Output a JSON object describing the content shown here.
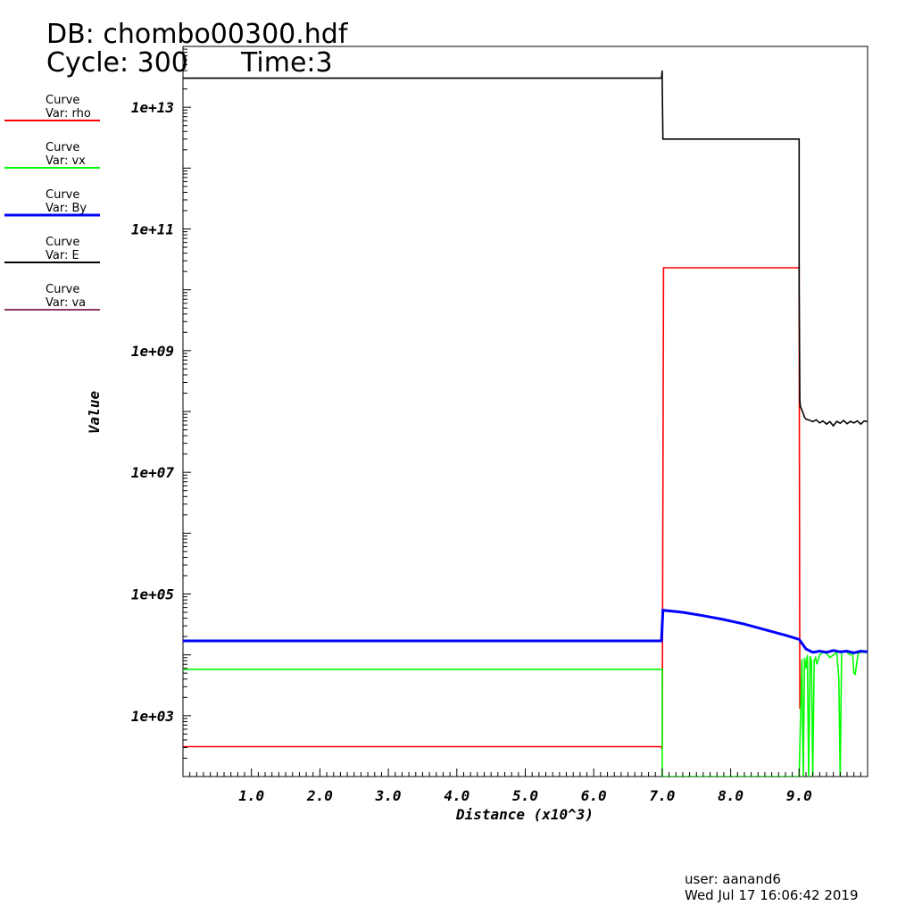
{
  "header": {
    "db_line": "DB: chombo00300.hdf",
    "cycle_line": "Cycle: 300",
    "time_line": "Time:3"
  },
  "footer": {
    "user": "user: aanand6",
    "timestamp": "Wed Jul 17 16:06:42 2019"
  },
  "chart_data": {
    "type": "line",
    "xlabel": "Distance (x10^3)",
    "ylabel": "Value",
    "yscale": "log",
    "xlim": [
      0,
      10
    ],
    "ylim": [
      100,
      100000000000000.0
    ],
    "x_ticks": [
      "1.0",
      "2.0",
      "3.0",
      "4.0",
      "5.0",
      "6.0",
      "7.0",
      "8.0",
      "9.0"
    ],
    "y_ticks": [
      "1e+03",
      "1e+05",
      "1e+07",
      "1e+09",
      "1e+11",
      "1e+13"
    ],
    "legend_position": "left",
    "series": [
      {
        "name": "rho",
        "legend_title": "Curve",
        "legend_var": "Var: rho",
        "color": "#ff0000",
        "x": [
          0,
          6.98,
          7.0,
          7.02,
          9.0,
          9.0,
          9.01
        ],
        "y": [
          310,
          310,
          280,
          23000000000.0,
          23000000000.0,
          12000000000.0,
          1300.0
        ]
      },
      {
        "name": "vx",
        "legend_title": "Curve",
        "legend_var": "Var: vx",
        "color": "#00ff00",
        "x": [
          0,
          7.0,
          7.0,
          7.0,
          9.0,
          9.0,
          9.04,
          9.06,
          9.08,
          9.1,
          9.12,
          9.14,
          9.16,
          9.18,
          9.2,
          9.22,
          9.24,
          9.26,
          9.3,
          9.35,
          9.4,
          9.45,
          9.5,
          9.55,
          9.58,
          9.6,
          9.62,
          9.66,
          9.7,
          9.74,
          9.78,
          9.8,
          9.82,
          9.86,
          9.9,
          9.95,
          10.0
        ],
        "y": [
          5800,
          5800,
          4000,
          100,
          100,
          100,
          8500,
          100,
          9000,
          6000,
          10000,
          100,
          9500,
          8000,
          100,
          8000,
          9000,
          7000,
          10000,
          11000,
          10500,
          9000,
          10000,
          11000,
          4000,
          100,
          11000,
          11500,
          11000,
          10000,
          11000,
          5000,
          4800,
          10500,
          11000,
          11000,
          11000
        ]
      },
      {
        "name": "By",
        "legend_title": "Curve",
        "legend_var": "Var: By",
        "color": "#0000ff",
        "x": [
          0,
          6.99,
          7.01,
          7.3,
          7.6,
          7.9,
          8.2,
          8.5,
          8.8,
          9.0,
          9.1,
          9.2,
          9.3,
          9.4,
          9.5,
          9.6,
          9.7,
          9.8,
          9.9,
          10.0
        ],
        "y": [
          17000,
          17000,
          54000,
          50000,
          44000,
          38000,
          32000,
          26000,
          21000,
          18000,
          12500,
          11000,
          11500,
          11000,
          11800,
          11200,
          11500,
          10800,
          11500,
          11200
        ]
      },
      {
        "name": "E",
        "legend_title": "Curve",
        "legend_var": "Var: E",
        "color": "#000000",
        "x": [
          0,
          6.99,
          7.0,
          7.0,
          7.01,
          8.99,
          9.0,
          9.0,
          9.01,
          9.02,
          9.05,
          9.08,
          9.1,
          9.15,
          9.2,
          9.25,
          9.3,
          9.35,
          9.4,
          9.45,
          9.5,
          9.55,
          9.6,
          9.65,
          9.7,
          9.75,
          9.8,
          9.85,
          9.9,
          9.95,
          10.0
        ],
        "y": [
          30000000000000.0,
          30000000000000.0,
          40000000000000.0,
          26000000000000.0,
          3000000000000.0,
          3000000000000.0,
          3000000000000.0,
          12000000000.0,
          150000000.0,
          120000000.0,
          100000000.0,
          80000000.0,
          75000000.0,
          72000000.0,
          68000000.0,
          73000000.0,
          65000000.0,
          70000000.0,
          62000000.0,
          68000000.0,
          58000000.0,
          69000000.0,
          64000000.0,
          71000000.0,
          63000000.0,
          69000000.0,
          65000000.0,
          70000000.0,
          62000000.0,
          70000000.0,
          68000000.0
        ]
      },
      {
        "name": "va",
        "legend_title": "Curve",
        "legend_var": "Var: va",
        "color": "#8b3a62",
        "x": [],
        "y": []
      }
    ]
  }
}
